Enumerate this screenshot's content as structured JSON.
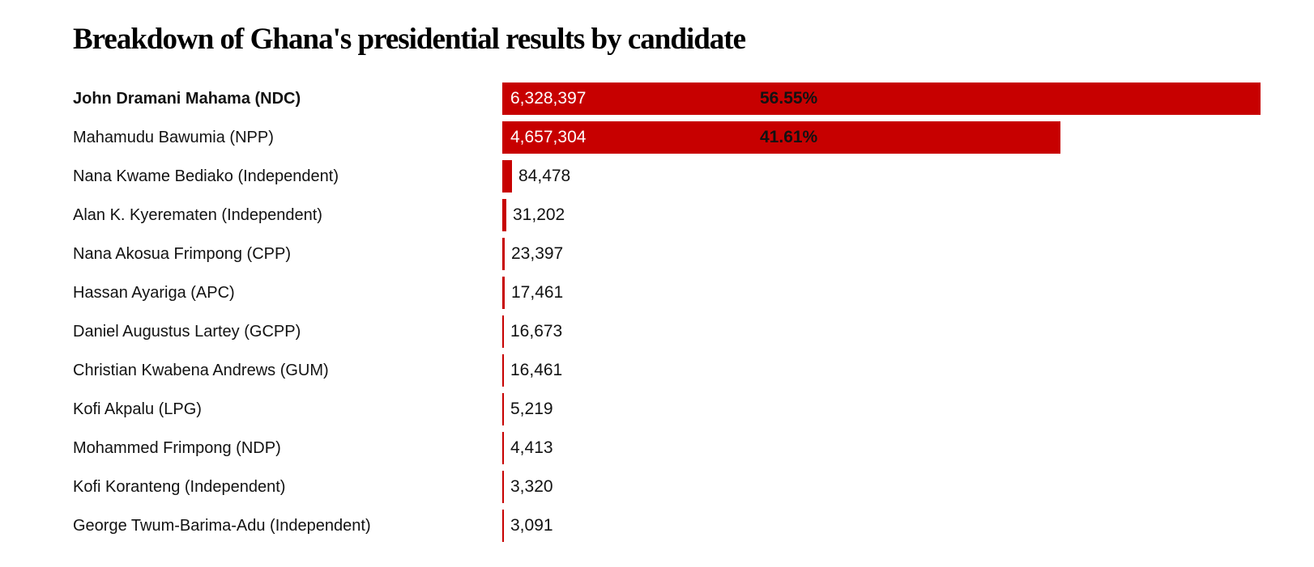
{
  "title": "Breakdown of Ghana's presidential results by candidate",
  "colors": {
    "bar": "#c70000",
    "value_text_on_bar": "#ffffff",
    "text": "#121212",
    "background": "#ffffff"
  },
  "chart_data": {
    "type": "bar",
    "orientation": "horizontal",
    "title": "Breakdown of Ghana's presidential results by candidate",
    "xlabel": "",
    "ylabel": "",
    "xlim": [
      0,
      6328397
    ],
    "grid": false,
    "legend": false,
    "categories": [
      "John Dramani Mahama (NDC)",
      "Mahamudu Bawumia (NPP)",
      "Nana Kwame Bediako (Independent)",
      "Alan K. Kyerematen (Independent)",
      "Nana Akosua Frimpong (CPP)",
      "Hassan Ayariga (APC)",
      "Daniel Augustus Lartey (GCPP)",
      "Christian Kwabena Andrews (GUM)",
      "Kofi Akpalu (LPG)",
      "Mohammed Frimpong (NDP)",
      "Kofi Koranteng (Independent)",
      "George Twum-Barima-Adu (Independent)"
    ],
    "values": [
      6328397,
      4657304,
      84478,
      31202,
      23397,
      17461,
      16673,
      16461,
      5219,
      4413,
      3320,
      3091
    ],
    "value_labels": [
      "6,328,397",
      "4,657,304",
      "84,478",
      "31,202",
      "23,397",
      "17,461",
      "16,673",
      "16,461",
      "5,219",
      "4,413",
      "3,320",
      "3,091"
    ],
    "percent_labels": [
      "56.55%",
      "41.61%",
      "",
      "",
      "",
      "",
      "",
      "",
      "",
      "",
      "",
      ""
    ],
    "bold_rows": [
      0
    ]
  }
}
